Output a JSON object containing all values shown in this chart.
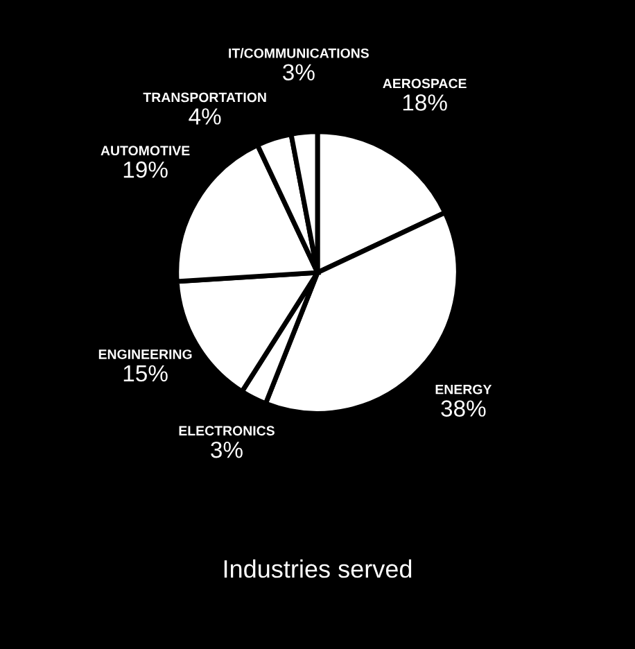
{
  "chart_data": {
    "type": "pie",
    "title": "Industries served",
    "categories": [
      "AEROSPACE",
      "ENERGY",
      "ELECTRONICS",
      "ENGINEERING",
      "AUTOMOTIVE",
      "TRANSPORTATION",
      "IT/COMMUNICATIONS"
    ],
    "values": [
      18,
      38,
      3,
      15,
      19,
      4,
      3
    ],
    "colors": [
      "#ffffff",
      "#ffffff",
      "#ffffff",
      "#ffffff",
      "#ffffff",
      "#ffffff",
      "#ffffff"
    ],
    "value_labels": [
      "18%",
      "38%",
      "3%",
      "15%",
      "19%",
      "4%",
      "3%"
    ]
  }
}
